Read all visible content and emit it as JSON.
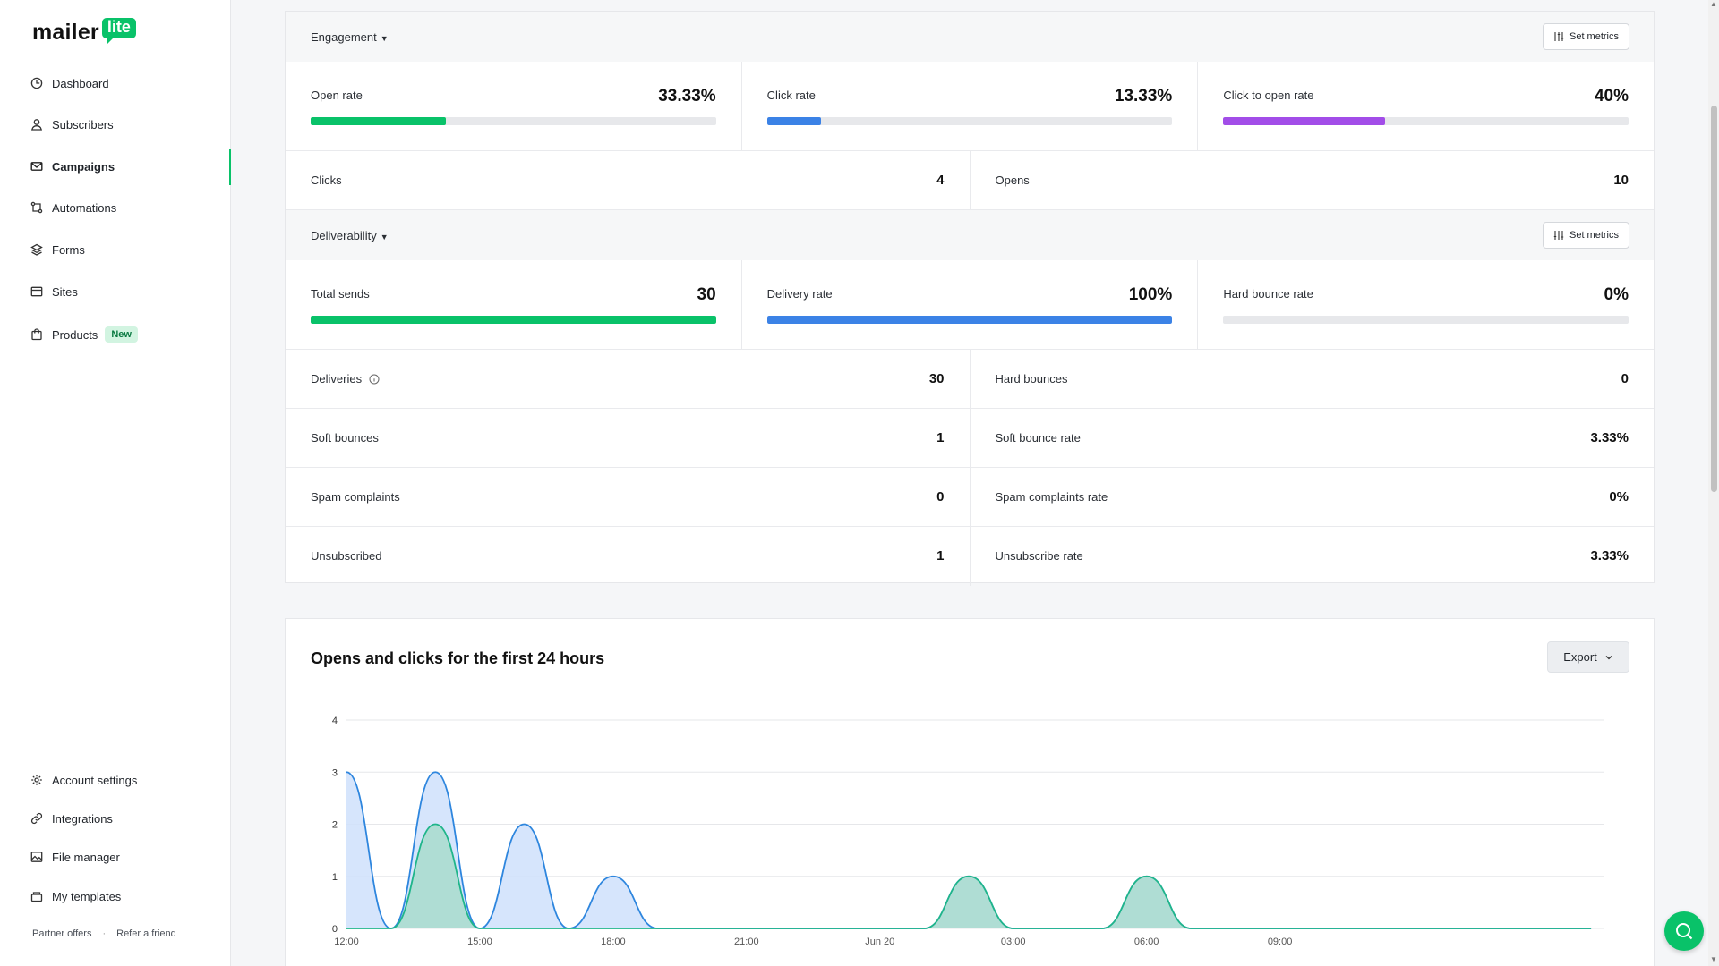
{
  "brand": {
    "name": "mailer",
    "badge": "lite"
  },
  "nav": {
    "dashboard": "Dashboard",
    "subscribers": "Subscribers",
    "campaigns": "Campaigns",
    "automations": "Automations",
    "forms": "Forms",
    "sites": "Sites",
    "products": "Products",
    "products_badge": "New",
    "account_settings": "Account settings",
    "integrations": "Integrations",
    "file_manager": "File manager",
    "my_templates": "My templates",
    "partner_offers": "Partner offers",
    "refer_friend": "Refer a friend"
  },
  "engagement": {
    "title": "Engagement",
    "set_metrics": "Set metrics",
    "open_rate": {
      "label": "Open rate",
      "value": "33.33%",
      "fraction": 0.3333,
      "color": "#09c269"
    },
    "click_rate": {
      "label": "Click rate",
      "value": "13.33%",
      "fraction": 0.1333,
      "color": "#3b82e6"
    },
    "click_to_open": {
      "label": "Click to open rate",
      "value": "40%",
      "fraction": 0.4,
      "color": "#a24de8"
    },
    "clicks": {
      "label": "Clicks",
      "value": "4"
    },
    "opens": {
      "label": "Opens",
      "value": "10"
    }
  },
  "deliverability": {
    "title": "Deliverability",
    "set_metrics": "Set metrics",
    "total_sends": {
      "label": "Total sends",
      "value": "30",
      "fraction": 1.0,
      "color": "#09c269"
    },
    "delivery_rate": {
      "label": "Delivery rate",
      "value": "100%",
      "fraction": 1.0,
      "color": "#3b82e6"
    },
    "hard_bounce_rate": {
      "label": "Hard bounce rate",
      "value": "0%",
      "fraction": 0.0,
      "color": "#e3463c"
    },
    "rows": [
      {
        "left_label": "Deliveries",
        "left_value": "30",
        "right_label": "Hard bounces",
        "right_value": "0"
      },
      {
        "left_label": "Soft bounces",
        "left_value": "1",
        "right_label": "Soft bounce rate",
        "right_value": "3.33%"
      },
      {
        "left_label": "Spam complaints",
        "left_value": "0",
        "right_label": "Spam complaints rate",
        "right_value": "0%"
      },
      {
        "left_label": "Unsubscribed",
        "left_value": "1",
        "right_label": "Unsubscribe rate",
        "right_value": "3.33%"
      }
    ]
  },
  "chart_section": {
    "title": "Opens and clicks for the first 24 hours",
    "export_label": "Export"
  },
  "chart_data": {
    "type": "area",
    "title": "Opens and clicks for the first 24 hours",
    "ylim": [
      0,
      4
    ],
    "yticks": [
      "0",
      "1",
      "2",
      "3",
      "4"
    ],
    "xticks": [
      {
        "label": "12:00",
        "hour": 0
      },
      {
        "label": "15:00",
        "hour": 3
      },
      {
        "label": "18:00",
        "hour": 6
      },
      {
        "label": "21:00",
        "hour": 9
      },
      {
        "label": "Jun 20",
        "hour": 12
      },
      {
        "label": "03:00",
        "hour": 15
      },
      {
        "label": "06:00",
        "hour": 18
      },
      {
        "label": "09:00",
        "hour": 21
      }
    ],
    "x_hours": [
      0,
      1,
      2,
      3,
      4,
      5,
      6,
      7,
      8,
      9,
      10,
      11,
      12,
      13,
      14,
      15,
      16,
      17,
      18,
      19,
      20,
      21,
      22,
      23
    ],
    "series": [
      {
        "key": "opens",
        "color": "#2e86de",
        "fill": "#cfe0fb",
        "values": [
          3,
          0,
          3,
          0,
          2,
          0,
          1,
          0,
          0,
          0,
          0,
          0,
          0,
          0,
          1,
          0,
          0,
          0,
          1,
          0,
          0,
          0,
          0,
          0
        ]
      },
      {
        "key": "clicks",
        "color": "#1fb58a",
        "fill": "#a8dccd",
        "values": [
          0,
          0,
          2,
          0,
          0,
          0,
          0,
          0,
          0,
          0,
          0,
          0,
          0,
          0,
          1,
          0,
          0,
          0,
          1,
          0,
          0,
          0,
          0,
          0
        ]
      }
    ],
    "grid": true
  }
}
